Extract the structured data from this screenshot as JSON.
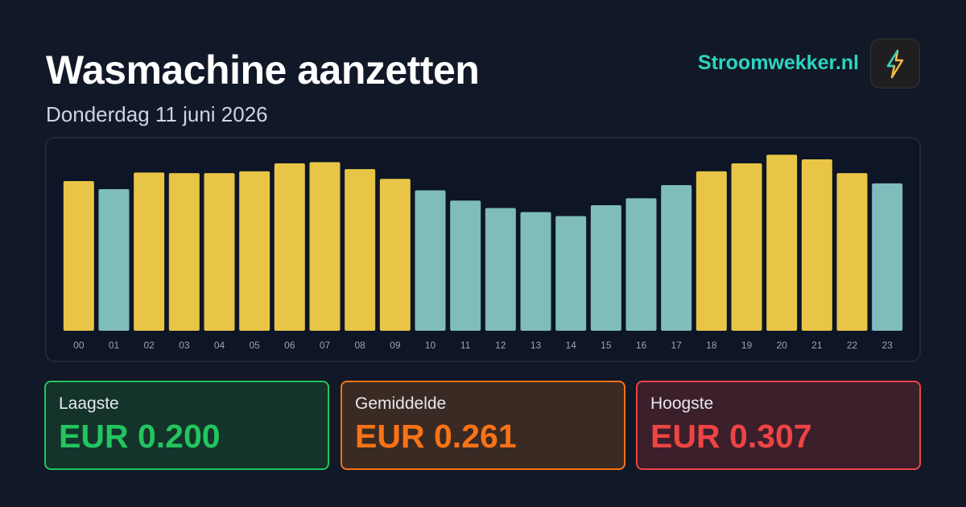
{
  "header": {
    "title": "Wasmachine aanzetten",
    "subtitle": "Donderdag 11 juni 2026",
    "brand": "Stroomwekker.nl"
  },
  "chart_data": {
    "type": "bar",
    "categories": [
      "00",
      "01",
      "02",
      "03",
      "04",
      "05",
      "06",
      "07",
      "08",
      "09",
      "10",
      "11",
      "12",
      "13",
      "14",
      "15",
      "16",
      "17",
      "18",
      "19",
      "20",
      "21",
      "22",
      "23"
    ],
    "values": [
      0.261,
      0.247,
      0.276,
      0.275,
      0.275,
      0.278,
      0.292,
      0.294,
      0.282,
      0.265,
      0.245,
      0.227,
      0.214,
      0.207,
      0.2,
      0.219,
      0.231,
      0.254,
      0.278,
      0.292,
      0.307,
      0.299,
      0.275,
      0.257
    ],
    "colors": [
      "#e8c547",
      "#7fbcbc",
      "#e8c547",
      "#e8c547",
      "#e8c547",
      "#e8c547",
      "#e8c547",
      "#e8c547",
      "#e8c547",
      "#e8c547",
      "#7fbcbc",
      "#7fbcbc",
      "#7fbcbc",
      "#7fbcbc",
      "#7fbcbc",
      "#7fbcbc",
      "#7fbcbc",
      "#7fbcbc",
      "#e8c547",
      "#e8c547",
      "#e8c547",
      "#e8c547",
      "#e8c547",
      "#7fbcbc"
    ],
    "ylim": [
      0,
      0.32
    ]
  },
  "stats": [
    {
      "label": "Laagste",
      "value": "EUR 0.200"
    },
    {
      "label": "Gemiddelde",
      "value": "EUR 0.261"
    },
    {
      "label": "Hoogste",
      "value": "EUR 0.307"
    }
  ]
}
